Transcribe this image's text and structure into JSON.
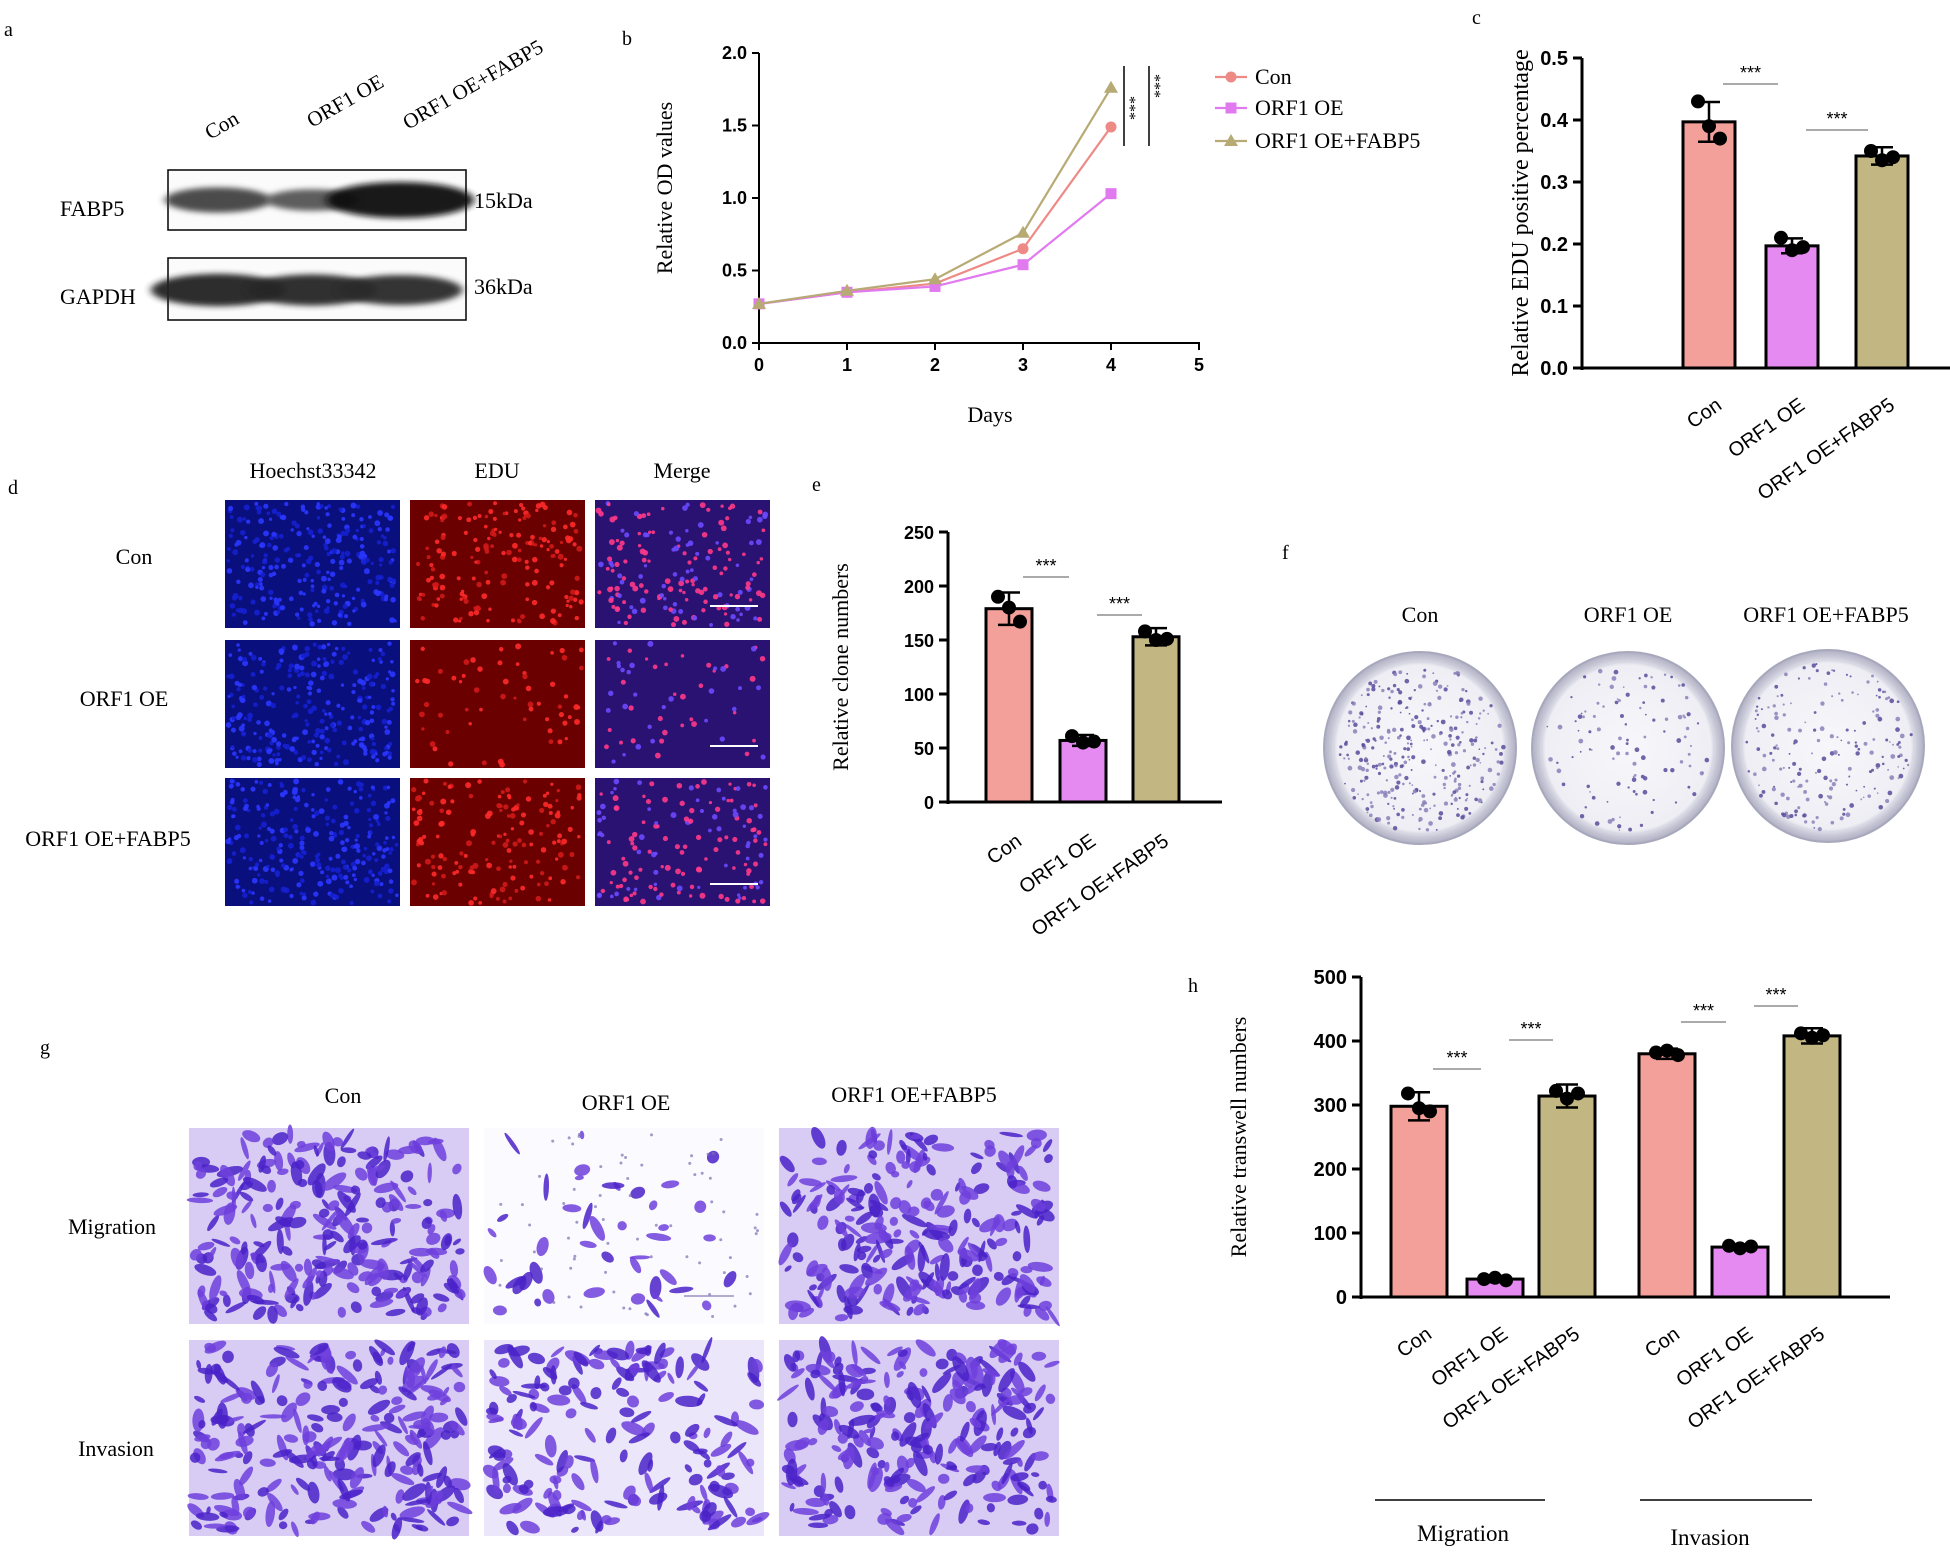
{
  "colors": {
    "con": "#f4a09a",
    "orf1oe": "#e48af0",
    "fabp5": "#c2b682",
    "con_line": "#ee8a86",
    "orf1oe_line": "#e179ef",
    "fabp5_line": "#b7aa74",
    "hoechst": "#1f2ad8",
    "edu": "#d01818",
    "crystal_violet": "#6a38d0"
  },
  "groups": [
    "Con",
    "ORF1 OE",
    "ORF1 OE+FABP5"
  ],
  "significance": "***",
  "panels": {
    "a": {
      "label": "a",
      "lanes": [
        "Con",
        "ORF1 OE",
        "ORF1 OE+FABP5"
      ],
      "bands": [
        {
          "name": "FABP5",
          "size": "15kDa",
          "intensity": [
            0.55,
            0.4,
            1.0
          ]
        },
        {
          "name": "GAPDH",
          "size": "36kDa",
          "intensity": [
            0.85,
            0.8,
            0.75
          ]
        }
      ]
    },
    "b": {
      "label": "b"
    },
    "c": {
      "label": "c"
    },
    "d": {
      "label": "d",
      "columns": [
        "Hoechst33342",
        "EDU",
        "Merge"
      ],
      "rows": [
        "Con",
        "ORF1 OE",
        "ORF1 OE+FABP5"
      ]
    },
    "e": {
      "label": "e"
    },
    "f": {
      "label": "f",
      "groups": [
        "Con",
        "ORF1 OE",
        "ORF1 OE+FABP5"
      ]
    },
    "g": {
      "label": "g",
      "columns": [
        "Con",
        "ORF1 OE",
        "ORF1 OE+FABP5"
      ],
      "rows": [
        "Migration",
        "Invasion"
      ]
    },
    "h": {
      "label": "h"
    }
  },
  "chart_data": [
    {
      "panel": "b",
      "type": "line",
      "xlabel": "Days",
      "ylabel": "Relative OD values",
      "x": [
        0,
        1,
        2,
        3,
        4
      ],
      "xlim": [
        0,
        5
      ],
      "ylim": [
        0,
        2.0
      ],
      "xticks": [
        "0",
        "1",
        "2",
        "3",
        "4",
        "5"
      ],
      "yticks": [
        "0.0",
        "0.5",
        "1.0",
        "1.5",
        "2.0"
      ],
      "series": [
        {
          "name": "Con",
          "marker": "circle",
          "values": [
            0.27,
            0.35,
            0.41,
            0.65,
            1.49
          ]
        },
        {
          "name": "ORF1 OE",
          "marker": "square",
          "values": [
            0.27,
            0.35,
            0.39,
            0.54,
            1.03
          ]
        },
        {
          "name": "ORF1 OE+FABP5",
          "marker": "triangle",
          "values": [
            0.27,
            0.36,
            0.44,
            0.76,
            1.76
          ]
        }
      ],
      "annotations": [
        "***",
        "***"
      ],
      "legend": "top-right"
    },
    {
      "panel": "c",
      "type": "bar",
      "ylabel": "Relative EDU positive percentage",
      "categories": [
        "Con",
        "ORF1 OE",
        "ORF1 OE+FABP5"
      ],
      "values": [
        0.397,
        0.197,
        0.342
      ],
      "errors": [
        0.032,
        0.012,
        0.014
      ],
      "points": [
        [
          0.43,
          0.39,
          0.37
        ],
        [
          0.21,
          0.19,
          0.195
        ],
        [
          0.35,
          0.335,
          0.34
        ]
      ],
      "ylim": [
        0,
        0.5
      ],
      "yticks": [
        "0.0",
        "0.1",
        "0.2",
        "0.3",
        "0.4",
        "0.5"
      ],
      "comparisons": [
        {
          "from": 0,
          "to": 1,
          "label": "***"
        },
        {
          "from": 1,
          "to": 2,
          "label": "***"
        }
      ]
    },
    {
      "panel": "e",
      "type": "bar",
      "ylabel": "Relative clone numbers",
      "categories": [
        "Con",
        "ORF1 OE",
        "ORF1 OE+FABP5"
      ],
      "values": [
        179,
        57,
        153
      ],
      "errors": [
        15,
        5,
        8
      ],
      "points": [
        [
          190,
          180,
          167
        ],
        [
          61,
          55,
          56
        ],
        [
          158,
          150,
          151
        ]
      ],
      "ylim": [
        0,
        250
      ],
      "yticks": [
        "0",
        "50",
        "100",
        "150",
        "200",
        "250"
      ],
      "comparisons": [
        {
          "from": 0,
          "to": 1,
          "label": "***"
        },
        {
          "from": 1,
          "to": 2,
          "label": "***"
        }
      ]
    },
    {
      "panel": "h",
      "type": "bar",
      "ylabel": "Relative transwell numbers",
      "categories": [
        "Con",
        "ORF1 OE",
        "ORF1 OE+FABP5",
        "Con",
        "ORF1 OE",
        "ORF1 OE+FABP5"
      ],
      "values": [
        298,
        28,
        314,
        380,
        78,
        408
      ],
      "errors": [
        22,
        5,
        18,
        8,
        4,
        12
      ],
      "points": [
        [
          318,
          295,
          290
        ],
        [
          28,
          30,
          26
        ],
        [
          322,
          310,
          318
        ],
        [
          382,
          385,
          378
        ],
        [
          80,
          76,
          79
        ],
        [
          412,
          405,
          409
        ]
      ],
      "ylim": [
        0,
        500
      ],
      "yticks": [
        "0",
        "100",
        "200",
        "300",
        "400",
        "500"
      ],
      "group_labels": [
        "Migration",
        "Invasion"
      ],
      "comparisons": [
        {
          "from": 0,
          "to": 1,
          "label": "***"
        },
        {
          "from": 1,
          "to": 2,
          "label": "***"
        },
        {
          "from": 3,
          "to": 4,
          "label": "***"
        },
        {
          "from": 4,
          "to": 5,
          "label": "***"
        }
      ]
    }
  ]
}
